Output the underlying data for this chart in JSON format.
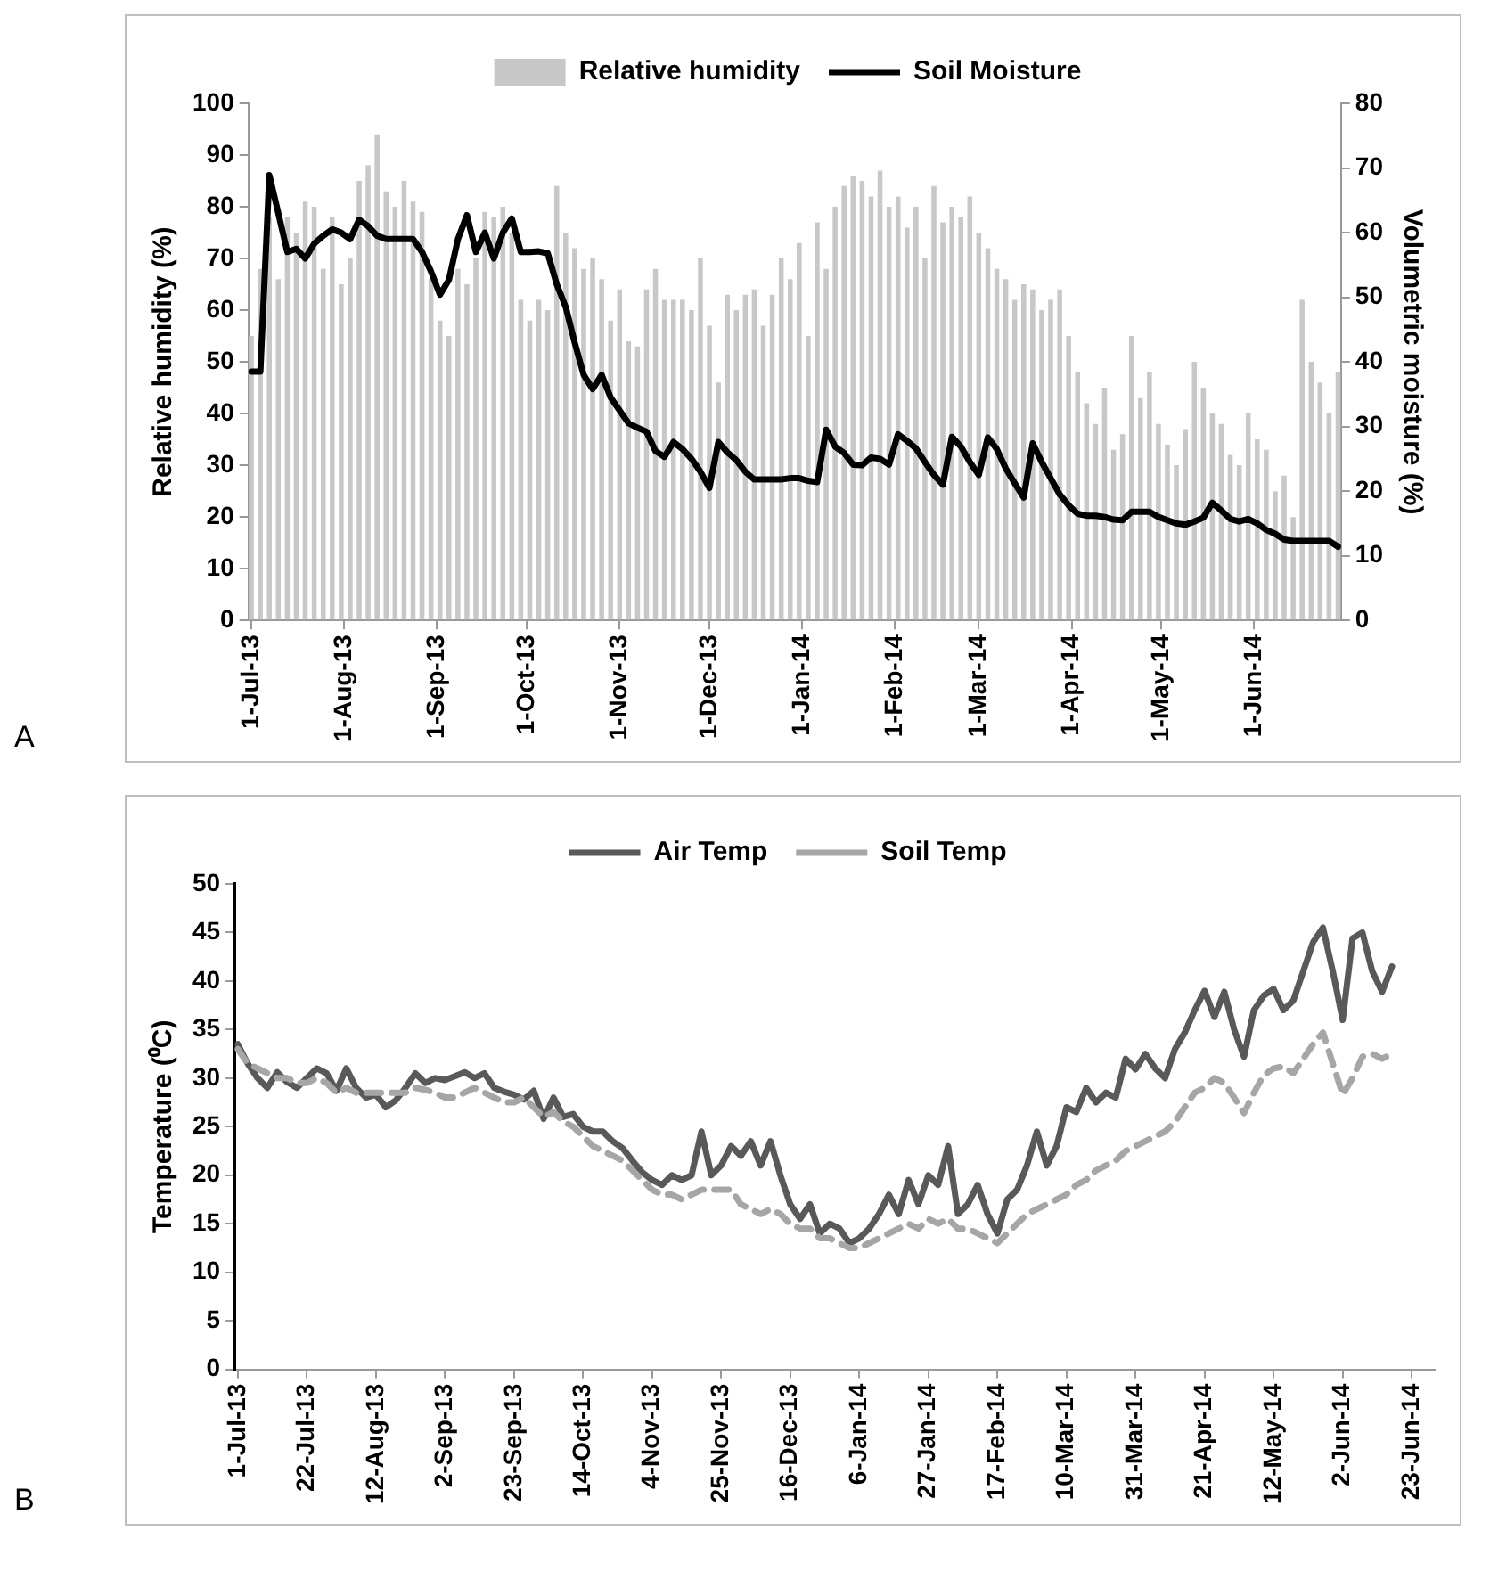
{
  "chart_data": [
    {
      "type": "bar",
      "legend": "top",
      "marker": "none",
      "ylabel": "Relative humidity (%)",
      "y2label": "Volumetric moisture (%)",
      "annotations": [
        "A"
      ],
      "xlim": [
        "2013-06-30",
        "2014-06-30"
      ],
      "xticks": [
        {
          "value": "2013-07-01",
          "label": "1-Jul-13"
        },
        {
          "value": "2013-08-01",
          "label": "1-Aug-13"
        },
        {
          "value": "2013-09-01",
          "label": "1-Sep-13"
        },
        {
          "value": "2013-10-01",
          "label": "1-Oct-13"
        },
        {
          "value": "2013-11-01",
          "label": "1-Nov-13"
        },
        {
          "value": "2013-12-01",
          "label": "1-Dec-13"
        },
        {
          "value": "2014-01-01",
          "label": "1-Jan-14"
        },
        {
          "value": "2014-02-01",
          "label": "1-Feb-14"
        },
        {
          "value": "2014-03-01",
          "label": "1-Mar-14"
        },
        {
          "value": "2014-04-01",
          "label": "1-Apr-14"
        },
        {
          "value": "2014-05-01",
          "label": "1-May-14"
        },
        {
          "value": "2014-06-01",
          "label": "1-Jun-14"
        }
      ],
      "ylim": [
        0,
        100
      ],
      "yticks": [
        0,
        10,
        20,
        30,
        40,
        50,
        60,
        70,
        80,
        90,
        100
      ],
      "y2lim": [
        0,
        80
      ],
      "y2ticks": [
        0,
        10,
        20,
        30,
        40,
        50,
        60,
        70,
        80
      ],
      "x": [
        "2013-07-01",
        "2013-07-04",
        "2013-07-07",
        "2013-07-10",
        "2013-07-13",
        "2013-07-16",
        "2013-07-19",
        "2013-07-22",
        "2013-07-25",
        "2013-07-28",
        "2013-07-31",
        "2013-08-03",
        "2013-08-06",
        "2013-08-09",
        "2013-08-12",
        "2013-08-15",
        "2013-08-18",
        "2013-08-21",
        "2013-08-24",
        "2013-08-27",
        "2013-08-30",
        "2013-09-02",
        "2013-09-05",
        "2013-09-08",
        "2013-09-11",
        "2013-09-14",
        "2013-09-17",
        "2013-09-20",
        "2013-09-23",
        "2013-09-26",
        "2013-09-29",
        "2013-10-02",
        "2013-10-05",
        "2013-10-08",
        "2013-10-11",
        "2013-10-14",
        "2013-10-17",
        "2013-10-20",
        "2013-10-23",
        "2013-10-26",
        "2013-10-29",
        "2013-11-01",
        "2013-11-04",
        "2013-11-07",
        "2013-11-10",
        "2013-11-13",
        "2013-11-16",
        "2013-11-19",
        "2013-11-22",
        "2013-11-25",
        "2013-11-28",
        "2013-12-01",
        "2013-12-04",
        "2013-12-07",
        "2013-12-10",
        "2013-12-13",
        "2013-12-16",
        "2013-12-19",
        "2013-12-22",
        "2013-12-25",
        "2013-12-28",
        "2013-12-31",
        "2014-01-03",
        "2014-01-06",
        "2014-01-09",
        "2014-01-12",
        "2014-01-15",
        "2014-01-18",
        "2014-01-21",
        "2014-01-24",
        "2014-01-27",
        "2014-01-30",
        "2014-02-02",
        "2014-02-05",
        "2014-02-08",
        "2014-02-11",
        "2014-02-14",
        "2014-02-17",
        "2014-02-20",
        "2014-02-23",
        "2014-02-26",
        "2014-03-01",
        "2014-03-04",
        "2014-03-07",
        "2014-03-10",
        "2014-03-13",
        "2014-03-16",
        "2014-03-19",
        "2014-03-22",
        "2014-03-25",
        "2014-03-28",
        "2014-03-31",
        "2014-04-03",
        "2014-04-06",
        "2014-04-09",
        "2014-04-12",
        "2014-04-15",
        "2014-04-18",
        "2014-04-21",
        "2014-04-24",
        "2014-04-27",
        "2014-04-30",
        "2014-05-03",
        "2014-05-06",
        "2014-05-09",
        "2014-05-12",
        "2014-05-15",
        "2014-05-18",
        "2014-05-21",
        "2014-05-24",
        "2014-05-27",
        "2014-05-30",
        "2014-06-02",
        "2014-06-05",
        "2014-06-08",
        "2014-06-11",
        "2014-06-14",
        "2014-06-17",
        "2014-06-20",
        "2014-06-23",
        "2014-06-26",
        "2014-06-29"
      ],
      "series": [
        {
          "name": "Relative humidity",
          "type": "bar",
          "color": "#c8c8c8",
          "values": [
            55,
            68,
            78,
            66,
            78,
            75,
            81,
            80,
            68,
            78,
            65,
            70,
            85,
            88,
            94,
            83,
            80,
            85,
            81,
            79,
            66,
            58,
            55,
            68,
            65,
            70,
            79,
            78,
            80,
            75,
            62,
            58,
            62,
            60,
            84,
            75,
            72,
            68,
            70,
            66,
            58,
            64,
            54,
            53,
            64,
            68,
            62,
            62,
            62,
            60,
            70,
            57,
            46,
            63,
            60,
            63,
            64,
            57,
            63,
            70,
            66,
            73,
            55,
            77,
            68,
            80,
            84,
            86,
            85,
            82,
            87,
            80,
            82,
            76,
            80,
            70,
            84,
            77,
            80,
            78,
            82,
            75,
            72,
            68,
            66,
            62,
            65,
            64,
            60,
            62,
            64,
            55,
            48,
            42,
            38,
            45,
            33,
            36,
            55,
            43,
            48,
            38,
            34,
            30,
            37,
            50,
            45,
            40,
            38,
            32,
            30,
            40,
            35,
            33,
            25,
            28,
            20,
            62,
            50,
            46,
            40,
            48
          ]
        },
        {
          "name": "Soil Moisture",
          "type": "line",
          "axis": "y2",
          "color": "#000000",
          "values": [
            38.5,
            38.5,
            68.9,
            63,
            57,
            57.5,
            56,
            58.3,
            59.5,
            60.5,
            60,
            59,
            62,
            61,
            59.5,
            59,
            59,
            59,
            59,
            57,
            54,
            50.4,
            52.7,
            59,
            62.7,
            57,
            60,
            56,
            60,
            62.2,
            57,
            57,
            57.1,
            56.8,
            52,
            48.5,
            43,
            38,
            35.8,
            38,
            34.5,
            32.5,
            30.5,
            29.8,
            29.2,
            26.2,
            25.3,
            27.6,
            26.5,
            25,
            23,
            20.5,
            27.6,
            26,
            24.8,
            23,
            21.8,
            21.8,
            21.8,
            21.8,
            22,
            22,
            21.6,
            21.4,
            29.5,
            26.9,
            25.9,
            24.1,
            24,
            25.2,
            25,
            24.1,
            28.8,
            27.8,
            26.6,
            24.5,
            22.5,
            21,
            28.4,
            26.9,
            24.5,
            22.5,
            28.3,
            26.5,
            23.5,
            21.2,
            19,
            27.4,
            24.5,
            22,
            19.5,
            17.8,
            16.5,
            16.2,
            16.2,
            16,
            15.6,
            15.5,
            16.8,
            16.8,
            16.8,
            16,
            15.5,
            15,
            14.8,
            15.3,
            15.9,
            18.2,
            17,
            15.7,
            15.3,
            15.7,
            15,
            14,
            13.4,
            12.5,
            12.3,
            12.3,
            12.3,
            12.3,
            12.3,
            11.4
          ]
        }
      ]
    },
    {
      "type": "line",
      "legend": "top",
      "marker": "none",
      "ylabel": "Temperature (⁰C)",
      "annotations": [
        "B"
      ],
      "xlim": [
        "2013-06-30",
        "2014-06-30"
      ],
      "xticks": [
        {
          "value": "2013-07-01",
          "label": "1-Jul-13"
        },
        {
          "value": "2013-07-22",
          "label": "22-Jul-13"
        },
        {
          "value": "2013-08-12",
          "label": "12-Aug-13"
        },
        {
          "value": "2013-09-02",
          "label": "2-Sep-13"
        },
        {
          "value": "2013-09-23",
          "label": "23-Sep-13"
        },
        {
          "value": "2013-10-14",
          "label": "14-Oct-13"
        },
        {
          "value": "2013-11-04",
          "label": "4-Nov-13"
        },
        {
          "value": "2013-11-25",
          "label": "25-Nov-13"
        },
        {
          "value": "2013-12-16",
          "label": "16-Dec-13"
        },
        {
          "value": "2014-01-06",
          "label": "6-Jan-14"
        },
        {
          "value": "2014-01-27",
          "label": "27-Jan-14"
        },
        {
          "value": "2014-02-17",
          "label": "17-Feb-14"
        },
        {
          "value": "2014-03-10",
          "label": "10-Mar-14"
        },
        {
          "value": "2014-03-31",
          "label": "31-Mar-14"
        },
        {
          "value": "2014-04-21",
          "label": "21-Apr-14"
        },
        {
          "value": "2014-05-12",
          "label": "12-May-14"
        },
        {
          "value": "2014-06-02",
          "label": "2-Jun-14"
        },
        {
          "value": "2014-06-23",
          "label": "23-Jun-14"
        }
      ],
      "ylim": [
        0,
        50
      ],
      "yticks": [
        0,
        5,
        10,
        15,
        20,
        25,
        30,
        35,
        40,
        45,
        50
      ],
      "x": [
        "2013-07-01",
        "2013-07-04",
        "2013-07-07",
        "2013-07-10",
        "2013-07-13",
        "2013-07-16",
        "2013-07-19",
        "2013-07-22",
        "2013-07-25",
        "2013-07-28",
        "2013-07-31",
        "2013-08-03",
        "2013-08-06",
        "2013-08-09",
        "2013-08-12",
        "2013-08-15",
        "2013-08-18",
        "2013-08-21",
        "2013-08-24",
        "2013-08-27",
        "2013-08-30",
        "2013-09-02",
        "2013-09-05",
        "2013-09-08",
        "2013-09-11",
        "2013-09-14",
        "2013-09-17",
        "2013-09-20",
        "2013-09-23",
        "2013-09-26",
        "2013-09-29",
        "2013-10-02",
        "2013-10-05",
        "2013-10-08",
        "2013-10-11",
        "2013-10-14",
        "2013-10-17",
        "2013-10-20",
        "2013-10-23",
        "2013-10-26",
        "2013-10-29",
        "2013-11-01",
        "2013-11-04",
        "2013-11-07",
        "2013-11-10",
        "2013-11-13",
        "2013-11-16",
        "2013-11-19",
        "2013-11-22",
        "2013-11-25",
        "2013-11-28",
        "2013-12-01",
        "2013-12-04",
        "2013-12-07",
        "2013-12-10",
        "2013-12-13",
        "2013-12-16",
        "2013-12-19",
        "2013-12-22",
        "2013-12-25",
        "2013-12-28",
        "2013-12-31",
        "2014-01-03",
        "2014-01-06",
        "2014-01-09",
        "2014-01-12",
        "2014-01-15",
        "2014-01-18",
        "2014-01-21",
        "2014-01-24",
        "2014-01-27",
        "2014-01-30",
        "2014-02-02",
        "2014-02-05",
        "2014-02-08",
        "2014-02-11",
        "2014-02-14",
        "2014-02-17",
        "2014-02-20",
        "2014-02-23",
        "2014-02-26",
        "2014-03-01",
        "2014-03-04",
        "2014-03-07",
        "2014-03-10",
        "2014-03-13",
        "2014-03-16",
        "2014-03-19",
        "2014-03-22",
        "2014-03-25",
        "2014-03-28",
        "2014-03-31",
        "2014-04-03",
        "2014-04-06",
        "2014-04-09",
        "2014-04-12",
        "2014-04-15",
        "2014-04-18",
        "2014-04-21",
        "2014-04-24",
        "2014-04-27",
        "2014-04-30",
        "2014-05-03",
        "2014-05-06",
        "2014-05-09",
        "2014-05-12",
        "2014-05-15",
        "2014-05-18",
        "2014-05-21",
        "2014-05-24",
        "2014-05-27",
        "2014-05-30",
        "2014-06-02",
        "2014-06-05",
        "2014-06-08",
        "2014-06-11",
        "2014-06-14",
        "2014-06-17"
      ],
      "series": [
        {
          "name": "Air Temp",
          "color": "#595959",
          "line_style": "solid",
          "values": [
            33.5,
            31.5,
            30,
            29,
            30.6,
            29.6,
            29,
            30,
            31,
            30.5,
            28.7,
            31,
            29,
            28,
            28.3,
            27,
            27.7,
            29,
            30.5,
            29.5,
            30,
            29.8,
            30.2,
            30.6,
            30,
            30.5,
            29,
            28.6,
            28.3,
            27.8,
            28.7,
            25.8,
            28,
            26,
            26.3,
            25,
            24.5,
            24.5,
            23.5,
            22.8,
            21.5,
            20.3,
            19.5,
            19,
            20,
            19.5,
            20,
            24.5,
            20,
            21,
            23,
            22,
            23.5,
            21,
            23.5,
            20,
            17,
            15.5,
            17,
            14,
            15,
            14.5,
            13,
            13.5,
            14.5,
            16,
            18,
            16,
            19.5,
            17,
            20,
            19,
            23,
            16,
            17,
            19,
            16,
            14,
            17.5,
            18.5,
            21,
            24.5,
            21,
            23,
            27,
            26.5,
            29,
            27.5,
            28.5,
            28,
            32,
            30.9,
            32.5,
            31,
            30,
            33,
            34.7,
            37,
            39,
            36.3,
            38.9,
            35,
            32.2,
            37,
            38.5,
            39.2,
            37,
            38,
            41,
            44,
            45.5,
            41,
            36,
            44.4,
            45,
            41,
            38.9,
            41.5
          ]
        },
        {
          "name": "Soil Temp",
          "color": "#a6a6a6",
          "line_style": "dashed",
          "values": [
            33,
            31.5,
            31,
            30.5,
            30,
            30,
            29.5,
            29.5,
            30,
            29.5,
            28.5,
            29,
            28.5,
            28.5,
            28.5,
            28.5,
            28.5,
            28.5,
            29,
            28.8,
            28.5,
            28,
            28,
            28.5,
            29,
            28.5,
            28,
            27.5,
            27.5,
            28,
            27,
            26,
            26.5,
            25.5,
            25,
            24,
            23,
            22.5,
            22,
            21.5,
            20.5,
            19.5,
            18.5,
            18,
            18,
            17.5,
            18,
            18.5,
            18.5,
            18.5,
            18.5,
            17,
            16.5,
            16,
            16.5,
            16,
            15,
            14.5,
            14.5,
            13.5,
            13.5,
            13,
            12.5,
            12.5,
            13,
            13.5,
            14,
            14.5,
            15,
            14.5,
            15.5,
            15,
            15.5,
            14.5,
            14.5,
            14,
            13.5,
            13,
            14,
            15,
            16,
            16.5,
            17,
            17.5,
            18,
            19,
            19.5,
            20.5,
            21,
            21.5,
            22.5,
            23,
            23.5,
            24,
            24.5,
            25.5,
            27,
            28.5,
            29,
            30,
            29.5,
            28,
            26.4,
            28.5,
            30.3,
            31,
            31.2,
            30.5,
            32,
            33.5,
            34.7,
            31.5,
            28.3,
            30,
            32.2,
            32.5,
            32,
            32.5
          ]
        }
      ]
    }
  ]
}
